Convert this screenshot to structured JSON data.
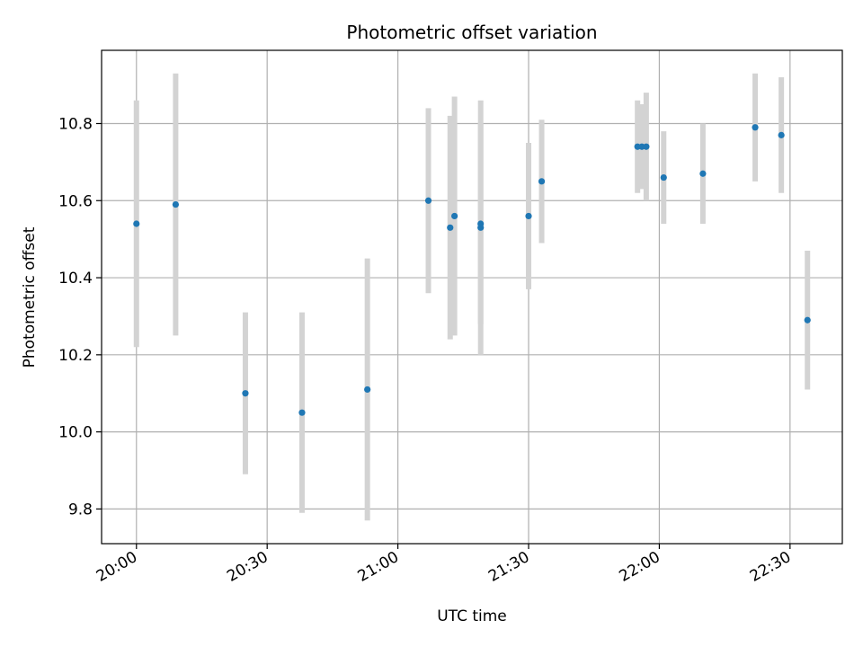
{
  "chart_data": {
    "type": "scatter",
    "title": "Photometric offset variation",
    "xlabel": "UTC time",
    "ylabel": "Photometric offset",
    "x_tick_labels": [
      "20:00",
      "20:30",
      "21:00",
      "21:30",
      "22:00",
      "22:30"
    ],
    "x_ticks_minutes": [
      0,
      30,
      60,
      90,
      120,
      150
    ],
    "y_ticks": [
      9.8,
      10.0,
      10.2,
      10.4,
      10.6,
      10.8
    ],
    "y_tick_labels": [
      "9.8",
      "10.0",
      "10.2",
      "10.4",
      "10.6",
      "10.8"
    ],
    "xlim_minutes": [
      -8,
      162
    ],
    "ylim": [
      9.71,
      10.99
    ],
    "grid": true,
    "point_color": "#1f77b4",
    "errorbar_color": "#d3d3d3",
    "series": [
      {
        "points": [
          {
            "x": "20:00",
            "y": 10.54,
            "err": 0.32
          },
          {
            "x": "20:09",
            "y": 10.59,
            "err": 0.34
          },
          {
            "x": "20:25",
            "y": 10.1,
            "err": 0.21
          },
          {
            "x": "20:38",
            "y": 10.05,
            "err": 0.26
          },
          {
            "x": "20:53",
            "y": 10.11,
            "err": 0.34
          },
          {
            "x": "21:07",
            "y": 10.6,
            "err": 0.24
          },
          {
            "x": "21:12",
            "y": 10.53,
            "err": 0.29
          },
          {
            "x": "21:13",
            "y": 10.56,
            "err": 0.31
          },
          {
            "x": "21:19",
            "y": 10.53,
            "err": 0.33
          },
          {
            "x": "21:19",
            "y": 10.54,
            "err": 0.26
          },
          {
            "x": "21:30",
            "y": 10.56,
            "err": 0.19
          },
          {
            "x": "21:33",
            "y": 10.65,
            "err": 0.16
          },
          {
            "x": "21:55",
            "y": 10.74,
            "err": 0.12
          },
          {
            "x": "21:56",
            "y": 10.74,
            "err": 0.11
          },
          {
            "x": "21:57",
            "y": 10.74,
            "err": 0.14
          },
          {
            "x": "22:01",
            "y": 10.66,
            "err": 0.12
          },
          {
            "x": "22:10",
            "y": 10.67,
            "err": 0.13
          },
          {
            "x": "22:22",
            "y": 10.79,
            "err": 0.14
          },
          {
            "x": "22:28",
            "y": 10.77,
            "err": 0.15
          },
          {
            "x": "22:34",
            "y": 10.29,
            "err": 0.18
          }
        ]
      }
    ]
  }
}
